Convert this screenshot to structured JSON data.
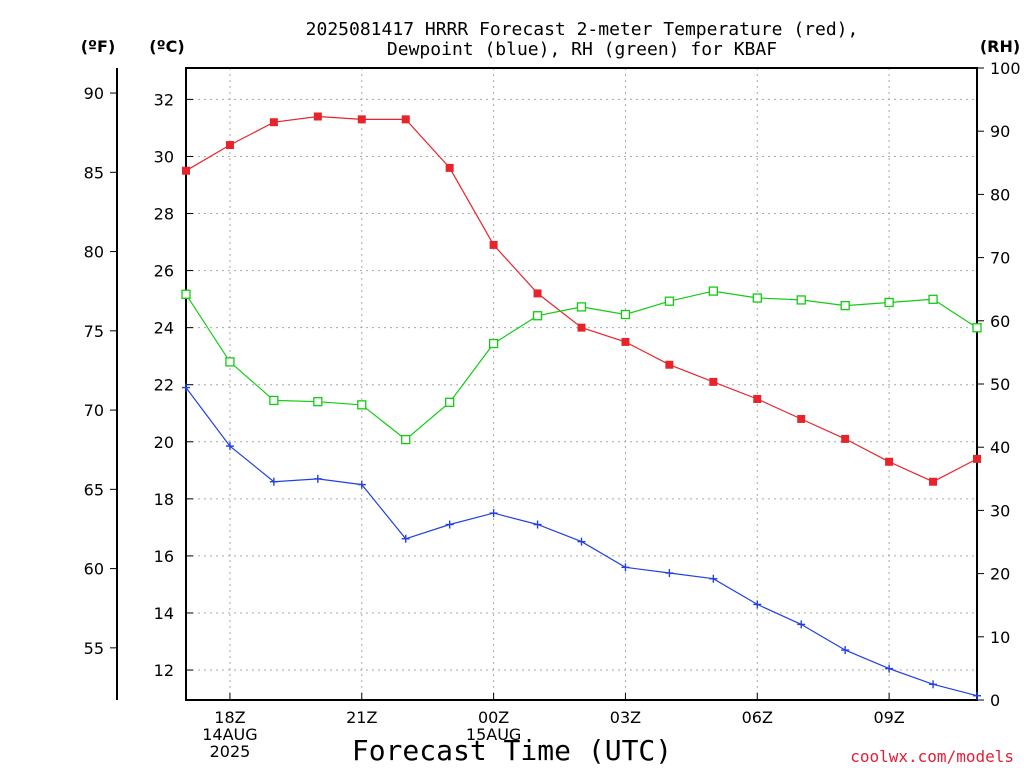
{
  "chart_data": {
    "type": "line",
    "title_line1": "2025081417 HRRR Forecast 2-meter Temperature (red),",
    "title_line2": "Dewpoint (blue), RH (green) for KBAF",
    "xlabel": "Forecast Time (UTC)",
    "credit": "coolwx.com/models",
    "units": {
      "fahrenheit": "(ºF)",
      "celsius": "(ºC)",
      "rh": "(RH)"
    },
    "x_hours": [
      17,
      18,
      19,
      20,
      21,
      22,
      23,
      24,
      25,
      26,
      27,
      28,
      29,
      30,
      31,
      32,
      33,
      34,
      35
    ],
    "xlim": [
      17,
      35
    ],
    "x_ticks": [
      {
        "hour": 18,
        "lines": [
          "18Z",
          "14AUG",
          "2025"
        ]
      },
      {
        "hour": 21,
        "lines": [
          "21Z"
        ]
      },
      {
        "hour": 24,
        "lines": [
          "00Z",
          "15AUG"
        ]
      },
      {
        "hour": 27,
        "lines": [
          "03Z"
        ]
      },
      {
        "hour": 30,
        "lines": [
          "06Z"
        ]
      },
      {
        "hour": 33,
        "lines": [
          "09Z"
        ]
      }
    ],
    "y_celsius": {
      "lim": [
        10.95,
        33.1
      ],
      "ticks": [
        12,
        14,
        16,
        18,
        20,
        22,
        24,
        26,
        28,
        30,
        32
      ]
    },
    "y_fahrenheit": {
      "ticks": [
        55,
        60,
        65,
        70,
        75,
        80,
        85,
        90
      ]
    },
    "y_rh": {
      "lim": [
        0,
        100
      ],
      "ticks": [
        0,
        10,
        20,
        30,
        40,
        50,
        60,
        70,
        80,
        90,
        100
      ]
    },
    "grid": true,
    "series": [
      {
        "key": "temperature",
        "unit": "C",
        "color": "#e8242b",
        "marker": "filled-square",
        "values": [
          29.5,
          30.4,
          31.2,
          31.4,
          31.3,
          31.3,
          29.6,
          26.9,
          25.2,
          24.0,
          23.5,
          22.7,
          22.1,
          21.5,
          20.8,
          20.1,
          19.3,
          18.6,
          19.4
        ]
      },
      {
        "key": "dewpoint",
        "unit": "C",
        "color": "#2340e0",
        "marker": "plus",
        "values": [
          21.9,
          19.85,
          18.6,
          18.7,
          18.5,
          16.6,
          17.1,
          17.5,
          17.1,
          16.5,
          15.6,
          15.4,
          15.2,
          14.3,
          13.6,
          12.7,
          12.05,
          11.5,
          11.1
        ]
      },
      {
        "key": "rh",
        "unit": "RH",
        "color": "#12cc12",
        "marker": "open-square",
        "values": [
          64.2,
          53.5,
          47.4,
          47.2,
          46.7,
          41.2,
          47.1,
          56.4,
          60.8,
          62.2,
          61.0,
          63.1,
          64.7,
          63.6,
          63.3,
          62.4,
          62.9,
          63.4,
          58.9
        ]
      }
    ]
  }
}
